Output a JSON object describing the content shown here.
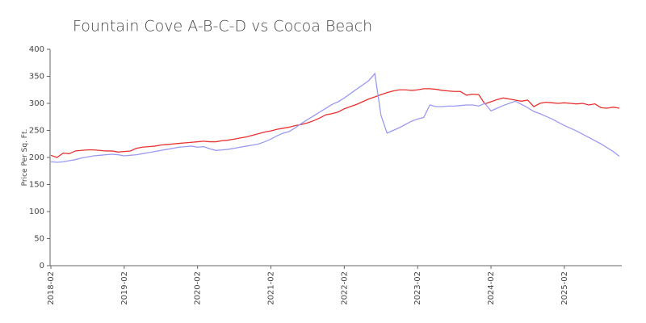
{
  "chart_data": {
    "type": "line",
    "title": "Fountain Cove A-B-C-D vs Cocoa Beach",
    "y_label": "Price Per Sq. Ft.",
    "x": [
      "2018-02",
      "2018-03",
      "2018-04",
      "2018-05",
      "2018-06",
      "2018-07",
      "2018-08",
      "2018-09",
      "2018-10",
      "2018-11",
      "2018-12",
      "2019-01",
      "2019-02",
      "2019-03",
      "2019-04",
      "2019-05",
      "2019-06",
      "2019-07",
      "2019-08",
      "2019-09",
      "2019-10",
      "2019-11",
      "2019-12",
      "2020-01",
      "2020-02",
      "2020-03",
      "2020-04",
      "2020-05",
      "2020-06",
      "2020-07",
      "2020-08",
      "2020-09",
      "2020-10",
      "2020-11",
      "2020-12",
      "2021-01",
      "2021-02",
      "2021-03",
      "2021-04",
      "2021-05",
      "2021-06",
      "2021-07",
      "2021-08",
      "2021-09",
      "2021-10",
      "2021-11",
      "2021-12",
      "2022-01",
      "2022-02",
      "2022-03",
      "2022-04",
      "2022-05",
      "2022-06",
      "2022-07",
      "2022-08",
      "2022-09",
      "2022-10",
      "2022-11",
      "2022-12",
      "2023-01",
      "2023-02",
      "2023-03",
      "2023-04",
      "2023-05",
      "2023-06",
      "2023-07",
      "2023-08",
      "2023-09",
      "2023-10",
      "2023-11",
      "2023-12",
      "2024-01",
      "2024-02",
      "2024-03",
      "2024-04",
      "2024-05",
      "2024-06",
      "2024-07",
      "2024-08",
      "2024-09",
      "2024-10",
      "2024-11",
      "2024-12",
      "2025-01",
      "2025-02",
      "2025-03",
      "2025-04",
      "2025-05",
      "2025-06",
      "2025-07",
      "2025-08",
      "2025-09",
      "2025-10",
      "2025-11"
    ],
    "xticks": [
      "2018-02",
      "2019-02",
      "2020-02",
      "2021-02",
      "2022-02",
      "2023-02",
      "2024-02",
      "2025-02"
    ],
    "series": [
      {
        "color": "#e83030",
        "values": [
          204,
          200,
          208,
          207,
          212,
          213,
          214,
          214,
          213,
          212,
          212,
          210,
          211,
          212,
          217,
          219,
          220,
          221,
          223,
          224,
          225,
          226,
          227,
          228,
          229,
          230,
          229,
          229,
          231,
          232,
          234,
          236,
          238,
          241,
          244,
          247,
          249,
          252,
          254,
          256,
          259,
          261,
          264,
          268,
          273,
          279,
          281,
          284,
          290,
          294,
          298,
          303,
          308,
          312,
          316,
          320,
          323,
          325,
          325,
          324,
          325,
          327,
          327,
          326,
          324,
          323,
          322,
          322,
          315,
          317,
          316,
          299,
          303,
          307,
          310,
          308,
          306,
          304,
          306,
          294,
          300,
          302,
          301,
          300,
          301,
          300,
          299,
          300,
          297,
          299,
          292,
          291,
          293,
          291
        ]
      },
      {
        "color": "#9a9af0",
        "values": [
          192,
          191,
          192,
          194,
          196,
          199,
          201,
          203,
          204,
          205,
          206,
          205,
          203,
          204,
          205,
          207,
          209,
          211,
          213,
          215,
          217,
          219,
          220,
          221,
          219,
          220,
          216,
          213,
          214,
          215,
          217,
          219,
          221,
          223,
          225,
          229,
          234,
          240,
          245,
          248,
          255,
          263,
          270,
          277,
          284,
          291,
          298,
          303,
          310,
          318,
          326,
          334,
          342,
          355,
          278,
          245,
          250,
          255,
          261,
          267,
          271,
          274,
          297,
          294,
          294,
          295,
          295,
          296,
          297,
          297,
          295,
          300,
          286,
          291,
          296,
          300,
          304,
          298,
          292,
          285,
          281,
          276,
          271,
          265,
          259,
          254,
          249,
          243,
          237,
          231,
          225,
          218,
          211,
          202
        ]
      }
    ],
    "ylim": [
      0,
      400
    ],
    "yticks": [
      0,
      50,
      100,
      150,
      200,
      250,
      300,
      350,
      400
    ]
  }
}
